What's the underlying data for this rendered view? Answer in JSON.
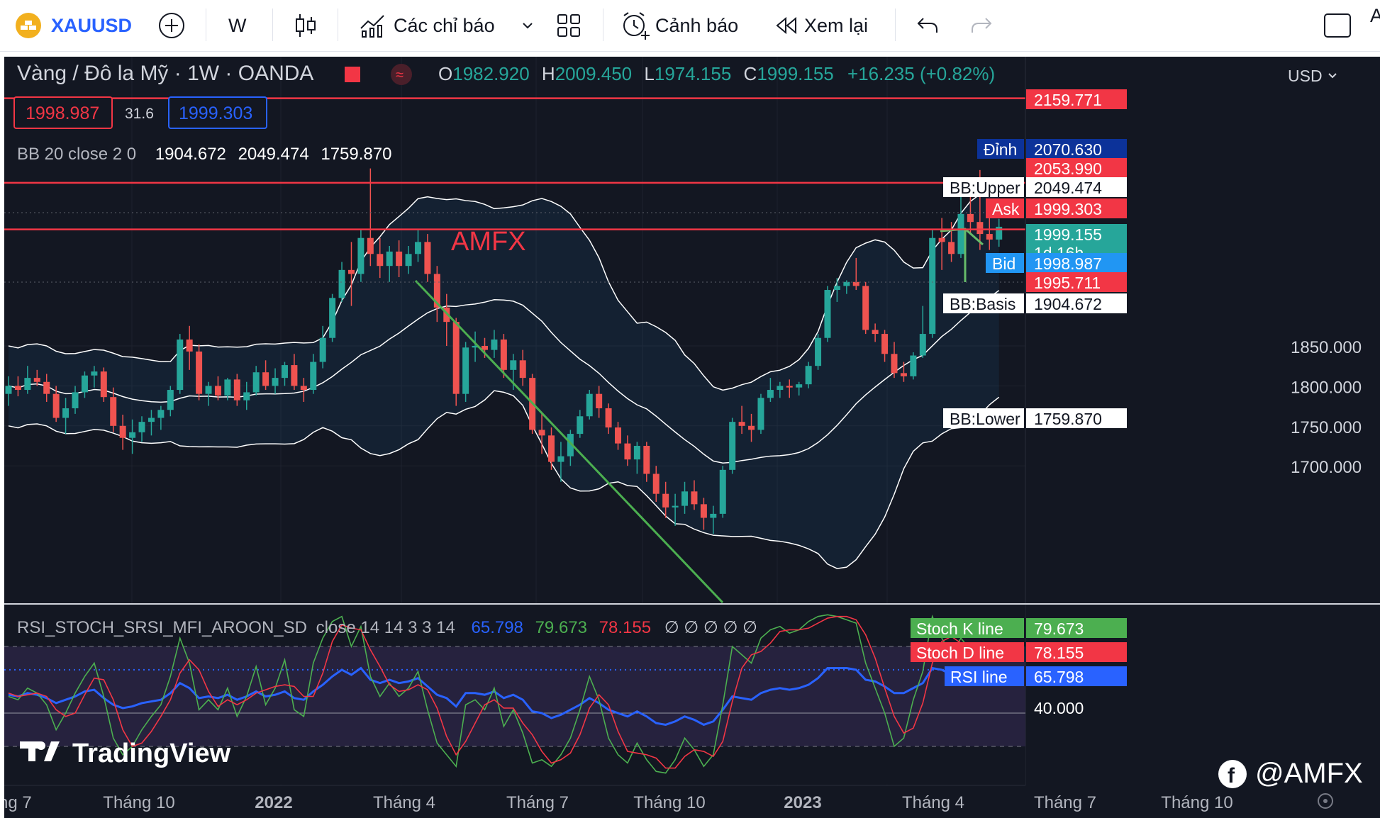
{
  "toolbar": {
    "symbol": "XAUUSD",
    "interval": "W",
    "indicators_label": "Các chỉ báo",
    "alert_label": "Cảnh báo",
    "replay_label": "Xem lại",
    "edge_letter": "A"
  },
  "header": {
    "title": "Vàng / Đô la Mỹ · 1W · OANDA",
    "o_label": "O",
    "o_value": "1982.920",
    "h_label": "H",
    "h_value": "2009.450",
    "l_label": "L",
    "l_value": "1974.155",
    "c_label": "C",
    "c_value": "1999.155",
    "change": "+16.235 (+0.82%)",
    "sell_price": "1998.987",
    "spread": "31.6",
    "buy_price": "1999.303",
    "bb_label": "BB 20 close 2 0",
    "bb_basis": "1904.672",
    "bb_upper": "2049.474",
    "bb_lower": "1759.870",
    "currency": "USD"
  },
  "rsi_header": {
    "name": "RSI_STOCH_SRSI_MFI_AROON_SD",
    "params": "close 14 14 3 3 14",
    "rsi_value": "65.798",
    "k_value": "79.673",
    "d_value": "78.155",
    "empties": "∅ ∅ ∅ ∅ ∅"
  },
  "watermark": {
    "text": "AMFX"
  },
  "logo": {
    "text": "TradingView"
  },
  "social": {
    "text": "@AMFX"
  },
  "colors": {
    "bg": "#131722",
    "up": "#26a69a",
    "down": "#ef5350",
    "red_line": "#f23645",
    "bb": "#ffffff",
    "trend": "#4caf50",
    "rsi": "#2962ff",
    "k": "#4caf50",
    "d": "#f23645"
  },
  "price_labels": [
    {
      "name": "",
      "value": "2159.771",
      "bg": "#f23645",
      "price": 2159.771
    },
    {
      "name": "Đỉnh",
      "value": "2070.630",
      "bg": "#0c3299",
      "price": 2070.63
    },
    {
      "name": "",
      "value": "2053.990",
      "bg": "#f23645",
      "price": 2053.99
    },
    {
      "name": "BB:Upper",
      "value": "2049.474",
      "bg": "#ffffff",
      "price": 2049.474
    },
    {
      "name": "Ask",
      "value": "1999.303",
      "bg": "#f23645",
      "price": 1999.303
    },
    {
      "name": "",
      "value": "1999.155",
      "sub": "1d 16h",
      "bg": "#26a69a",
      "price": 1999.155
    },
    {
      "name": "Bid",
      "value": "1998.987",
      "bg": "#2196f3",
      "price": 1998.987
    },
    {
      "name": "",
      "value": "1995.711",
      "bg": "#f23645",
      "price": 1995.711
    },
    {
      "name": "BB:Basis",
      "value": "1904.672",
      "bg": "#ffffff",
      "price": 1904.672
    },
    {
      "name": "BB:Lower",
      "value": "1759.870",
      "bg": "#ffffff",
      "price": 1759.87
    }
  ],
  "rsi_labels": [
    {
      "name": "Stoch K line",
      "value": "79.673",
      "bg": "#4caf50"
    },
    {
      "name": "Stoch D line",
      "value": "78.155",
      "bg": "#f23645"
    },
    {
      "name": "RSI line",
      "value": "65.798",
      "bg": "#2962ff"
    },
    {
      "name": "",
      "value": "40.000",
      "bg": ""
    }
  ],
  "chart_data": [
    {
      "type": "candlestick",
      "title": "Vàng / Đô la Mỹ · 1W · OANDA",
      "y_ticks": [
        1850,
        1800,
        1750,
        1700
      ],
      "x_ticks": [
        "ng 7",
        "Tháng 10",
        "2022",
        "Tháng 4",
        "Tháng 7",
        "Tháng 10",
        "2023",
        "Tháng 4",
        "Tháng 7",
        "Tháng 10"
      ],
      "horizontal_levels": [
        2159.771,
        2053.99,
        1995.711
      ],
      "candles": [
        [
          1790,
          1812,
          1775,
          1800
        ],
        [
          1800,
          1812,
          1787,
          1795
        ],
        [
          1795,
          1825,
          1790,
          1810
        ],
        [
          1810,
          1820,
          1800,
          1805
        ],
        [
          1805,
          1815,
          1780,
          1790
        ],
        [
          1790,
          1800,
          1755,
          1760
        ],
        [
          1760,
          1785,
          1740,
          1772
        ],
        [
          1772,
          1800,
          1765,
          1792
        ],
        [
          1792,
          1818,
          1785,
          1813
        ],
        [
          1813,
          1825,
          1798,
          1818
        ],
        [
          1818,
          1823,
          1780,
          1786
        ],
        [
          1786,
          1798,
          1742,
          1750
        ],
        [
          1750,
          1764,
          1720,
          1735
        ],
        [
          1735,
          1758,
          1715,
          1742
        ],
        [
          1742,
          1762,
          1730,
          1755
        ],
        [
          1755,
          1770,
          1738,
          1760
        ],
        [
          1760,
          1775,
          1745,
          1770
        ],
        [
          1770,
          1800,
          1762,
          1795
        ],
        [
          1795,
          1865,
          1790,
          1858
        ],
        [
          1858,
          1875,
          1820,
          1843
        ],
        [
          1843,
          1852,
          1782,
          1790
        ],
        [
          1790,
          1805,
          1775,
          1800
        ],
        [
          1800,
          1812,
          1782,
          1788
        ],
        [
          1788,
          1810,
          1782,
          1808
        ],
        [
          1808,
          1815,
          1775,
          1782
        ],
        [
          1782,
          1805,
          1770,
          1792
        ],
        [
          1792,
          1825,
          1788,
          1817
        ],
        [
          1817,
          1832,
          1795,
          1800
        ],
        [
          1800,
          1822,
          1790,
          1810
        ],
        [
          1810,
          1830,
          1800,
          1826
        ],
        [
          1826,
          1840,
          1795,
          1800
        ],
        [
          1800,
          1810,
          1780,
          1795
        ],
        [
          1795,
          1840,
          1790,
          1830
        ],
        [
          1830,
          1875,
          1822,
          1860
        ],
        [
          1860,
          1915,
          1855,
          1910
        ],
        [
          1910,
          1955,
          1905,
          1945
        ],
        [
          1945,
          1980,
          1900,
          1940
        ],
        [
          1940,
          1995,
          1930,
          1985
        ],
        [
          1985,
          2072,
          1950,
          1965
        ],
        [
          1965,
          1985,
          1935,
          1950
        ],
        [
          1950,
          1975,
          1930,
          1968
        ],
        [
          1968,
          1982,
          1936,
          1950
        ],
        [
          1950,
          1975,
          1940,
          1965
        ],
        [
          1965,
          1995,
          1955,
          1980
        ],
        [
          1980,
          1990,
          1930,
          1940
        ],
        [
          1940,
          1950,
          1880,
          1898
        ],
        [
          1898,
          1915,
          1850,
          1880
        ],
        [
          1880,
          1885,
          1775,
          1790
        ],
        [
          1790,
          1855,
          1780,
          1848
        ],
        [
          1848,
          1868,
          1830,
          1850
        ],
        [
          1850,
          1860,
          1835,
          1845
        ],
        [
          1845,
          1870,
          1835,
          1858
        ],
        [
          1858,
          1865,
          1810,
          1820
        ],
        [
          1820,
          1840,
          1795,
          1832
        ],
        [
          1832,
          1845,
          1800,
          1810
        ],
        [
          1810,
          1815,
          1740,
          1745
        ],
        [
          1745,
          1765,
          1715,
          1738
        ],
        [
          1738,
          1748,
          1695,
          1705
        ],
        [
          1705,
          1730,
          1680,
          1712
        ],
        [
          1712,
          1745,
          1700,
          1740
        ],
        [
          1740,
          1770,
          1735,
          1762
        ],
        [
          1762,
          1795,
          1758,
          1790
        ],
        [
          1790,
          1800,
          1760,
          1772
        ],
        [
          1772,
          1778,
          1740,
          1748
        ],
        [
          1748,
          1755,
          1720,
          1728
        ],
        [
          1728,
          1738,
          1700,
          1708
        ],
        [
          1708,
          1730,
          1690,
          1725
        ],
        [
          1725,
          1730,
          1680,
          1690
        ],
        [
          1690,
          1700,
          1655,
          1665
        ],
        [
          1665,
          1680,
          1635,
          1648
        ],
        [
          1648,
          1665,
          1625,
          1650
        ],
        [
          1650,
          1680,
          1640,
          1668
        ],
        [
          1668,
          1682,
          1645,
          1652
        ],
        [
          1652,
          1660,
          1620,
          1635
        ],
        [
          1635,
          1650,
          1615,
          1640
        ],
        [
          1640,
          1700,
          1635,
          1695
        ],
        [
          1695,
          1760,
          1690,
          1755
        ],
        [
          1755,
          1775,
          1740,
          1750
        ],
        [
          1750,
          1765,
          1730,
          1745
        ],
        [
          1745,
          1790,
          1740,
          1785
        ],
        [
          1785,
          1810,
          1780,
          1795
        ],
        [
          1795,
          1805,
          1785,
          1800
        ],
        [
          1800,
          1808,
          1785,
          1798
        ],
        [
          1798,
          1805,
          1788,
          1802
        ],
        [
          1802,
          1830,
          1797,
          1825
        ],
        [
          1825,
          1865,
          1820,
          1860
        ],
        [
          1860,
          1925,
          1855,
          1920
        ],
        [
          1920,
          1935,
          1905,
          1925
        ],
        [
          1925,
          1932,
          1915,
          1930
        ],
        [
          1930,
          1960,
          1920,
          1925
        ],
        [
          1925,
          1930,
          1865,
          1870
        ],
        [
          1870,
          1878,
          1855,
          1865
        ],
        [
          1865,
          1870,
          1830,
          1840
        ],
        [
          1840,
          1855,
          1810,
          1816
        ],
        [
          1816,
          1830,
          1805,
          1812
        ],
        [
          1812,
          1842,
          1808,
          1838
        ],
        [
          1838,
          1900,
          1835,
          1865
        ],
        [
          1865,
          1995,
          1860,
          1985
        ],
        [
          1985,
          2010,
          1945,
          1980
        ],
        [
          1980,
          2005,
          1955,
          1965
        ],
        [
          1965,
          2040,
          1960,
          2015
        ],
        [
          2015,
          2050,
          1990,
          2005
        ],
        [
          2005,
          2070,
          1970,
          1990
        ],
        [
          1990,
          2010,
          1970,
          1983
        ],
        [
          1983,
          2009,
          1974,
          1999
        ]
      ]
    },
    {
      "type": "line",
      "title": "RSI_STOCH_SRSI_MFI_AROON_SD",
      "series": [
        {
          "name": "RSI line",
          "values": [
            51,
            50,
            52,
            51,
            49,
            46,
            48,
            50,
            53,
            54,
            49,
            45,
            43,
            44,
            46,
            47,
            48,
            52,
            58,
            55,
            49,
            50,
            49,
            51,
            48,
            50,
            53,
            50,
            51,
            53,
            49,
            48,
            53,
            57,
            62,
            66,
            63,
            67,
            60,
            58,
            60,
            58,
            59,
            61,
            56,
            51,
            49,
            44,
            52,
            52,
            51,
            53,
            49,
            51,
            48,
            41,
            40,
            37,
            39,
            42,
            45,
            49,
            46,
            42,
            40,
            38,
            41,
            38,
            34,
            33,
            35,
            38,
            36,
            33,
            35,
            42,
            50,
            49,
            48,
            52,
            54,
            55,
            54,
            55,
            57,
            61,
            67,
            67,
            67,
            66,
            60,
            59,
            56,
            52,
            52,
            55,
            58,
            67,
            66,
            63,
            66,
            65,
            64,
            64,
            66
          ]
        },
        {
          "name": "Stoch K line",
          "values": [
            50,
            48,
            55,
            52,
            45,
            30,
            40,
            52,
            62,
            70,
            50,
            25,
            15,
            20,
            30,
            38,
            45,
            62,
            85,
            70,
            42,
            48,
            42,
            55,
            38,
            50,
            68,
            45,
            55,
            72,
            42,
            38,
            70,
            85,
            95,
            98,
            80,
            92,
            62,
            50,
            58,
            50,
            55,
            65,
            42,
            22,
            15,
            8,
            45,
            48,
            42,
            55,
            32,
            42,
            28,
            10,
            12,
            8,
            15,
            25,
            42,
            62,
            48,
            25,
            15,
            10,
            22,
            12,
            5,
            4,
            12,
            25,
            18,
            8,
            15,
            45,
            80,
            75,
            70,
            85,
            90,
            92,
            88,
            90,
            95,
            98,
            99,
            98,
            96,
            94,
            70,
            55,
            40,
            20,
            25,
            48,
            65,
            98,
            85,
            75,
            85,
            78,
            72,
            75,
            79.7
          ]
        },
        {
          "name": "Stoch D line",
          "values": [
            52,
            50,
            51,
            52,
            50,
            42,
            38,
            40,
            51,
            61,
            60,
            48,
            30,
            20,
            22,
            29,
            38,
            48,
            64,
            72,
            66,
            53,
            44,
            48,
            45,
            48,
            52,
            54,
            56,
            57,
            56,
            50,
            50,
            64,
            83,
            93,
            91,
            90,
            78,
            68,
            57,
            53,
            54,
            57,
            54,
            43,
            26,
            15,
            23,
            34,
            45,
            48,
            43,
            43,
            34,
            27,
            17,
            10,
            12,
            16,
            27,
            43,
            51,
            45,
            29,
            17,
            16,
            15,
            13,
            7,
            7,
            14,
            18,
            17,
            14,
            23,
            47,
            67,
            75,
            77,
            82,
            89,
            90,
            90,
            91,
            94,
            97,
            98,
            98,
            96,
            87,
            73,
            55,
            38,
            28,
            31,
            46,
            70,
            83,
            86,
            82,
            79,
            78,
            75,
            78.2
          ]
        }
      ],
      "levels": [
        80,
        40,
        20
      ]
    }
  ]
}
